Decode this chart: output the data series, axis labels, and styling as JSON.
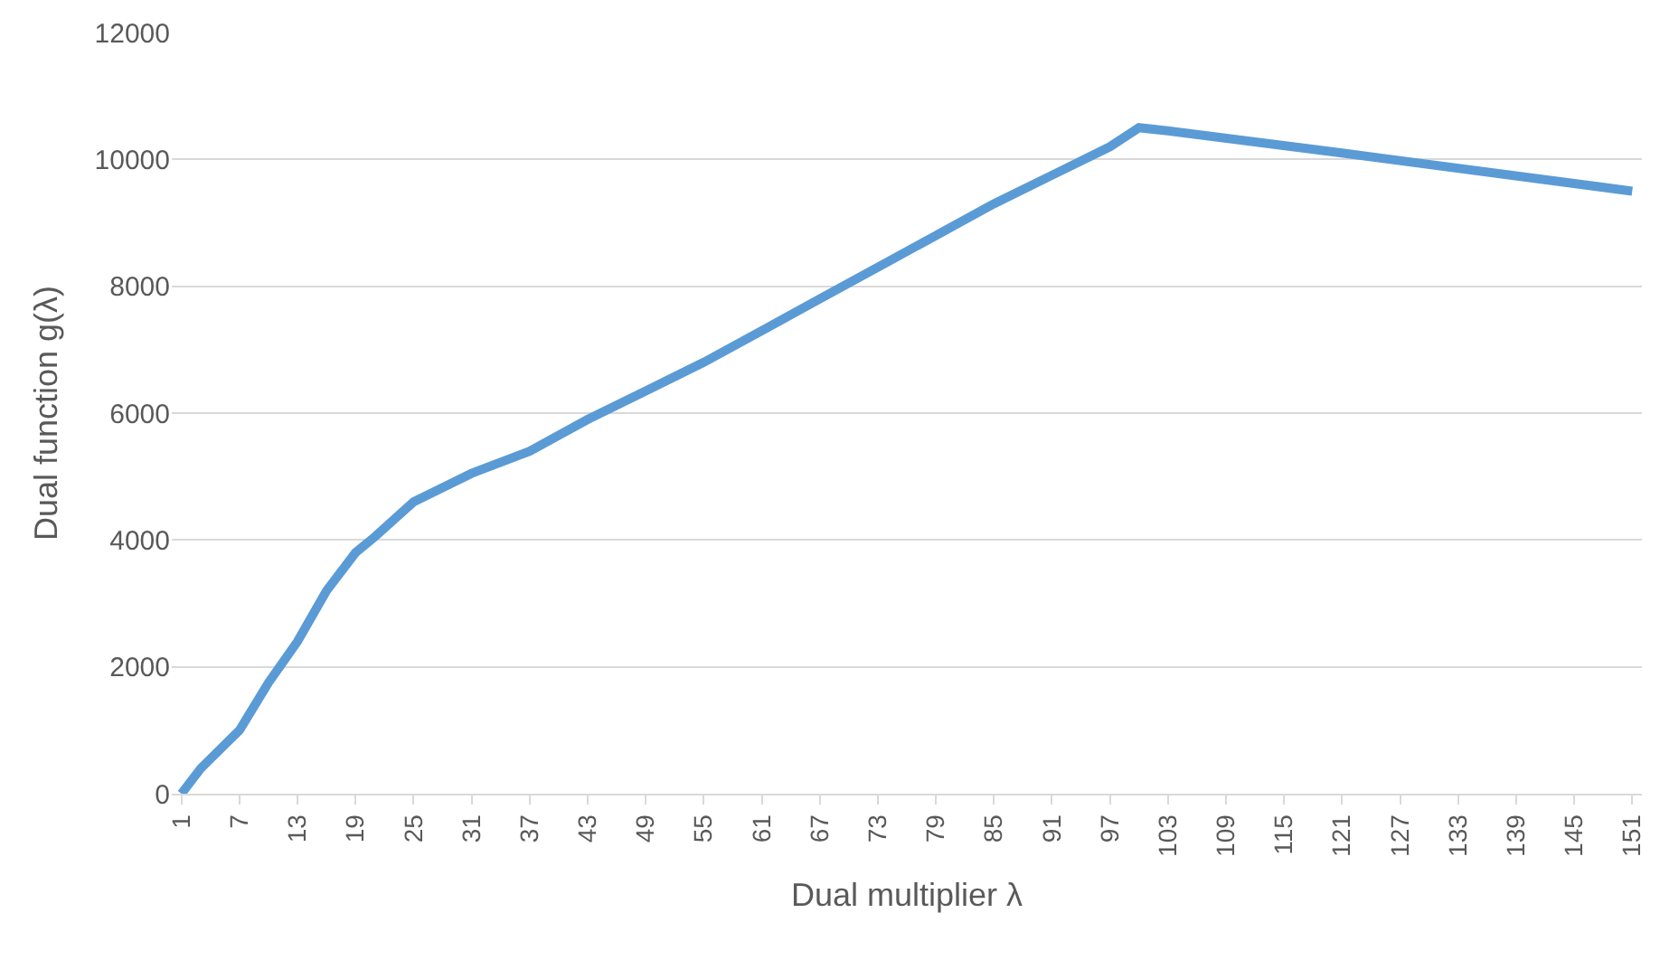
{
  "chart_data": {
    "type": "line",
    "xlabel": "Dual multiplier λ",
    "ylabel": "Dual function g(λ)",
    "x": [
      1,
      3,
      7,
      10,
      13,
      16,
      19,
      21,
      25,
      31,
      37,
      43,
      49,
      55,
      61,
      67,
      73,
      79,
      85,
      91,
      97,
      100,
      103,
      121,
      151
    ],
    "series": [
      {
        "color": "#5b9bd5",
        "values": [
          0,
          400,
          1000,
          1750,
          2400,
          3200,
          3800,
          4050,
          4600,
          5050,
          5400,
          5900,
          6350,
          6800,
          7300,
          7800,
          8300,
          8800,
          9300,
          9750,
          10200,
          10500,
          10450,
          10100,
          9500
        ]
      }
    ],
    "xlim": [
      0,
      152
    ],
    "xticks": [
      1,
      7,
      13,
      19,
      25,
      31,
      37,
      43,
      49,
      55,
      61,
      67,
      73,
      79,
      85,
      91,
      97,
      103,
      109,
      115,
      121,
      127,
      133,
      139,
      145,
      151
    ],
    "ylim": [
      0,
      12000
    ],
    "yticks": [
      0,
      2000,
      4000,
      6000,
      8000,
      10000,
      12000
    ],
    "grid": "y",
    "legend": false,
    "marker": "none",
    "line_style": "solid"
  }
}
